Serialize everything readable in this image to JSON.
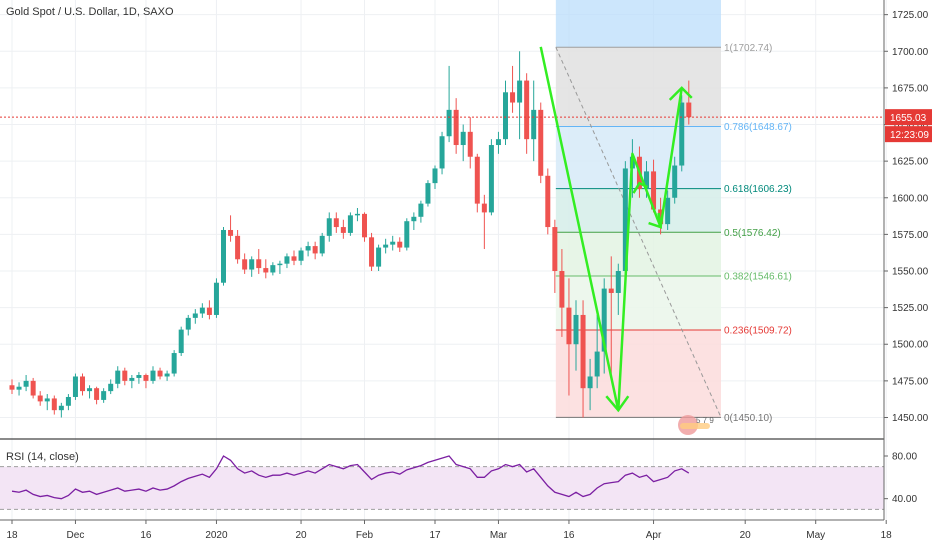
{
  "symbol_title": "Gold Spot / U.S. Dollar, 1D, SAXO",
  "rsi_title": "RSI (14, close)",
  "price_badge": "1655.03",
  "time_badge": "12:23:09",
  "watermark_digits": "5 7 9",
  "colors": {
    "up": "#26a69a",
    "down": "#ef5350",
    "price_line": "#e53935",
    "rsi": "#7b1fa2",
    "rsi_band": "#f3e5f5",
    "arrow": "#33ee22"
  },
  "chart_data": {
    "type": "candlestick",
    "y_axis_ticks": [
      "1725.00",
      "1700.00",
      "1675.00",
      "1650.00",
      "1625.00",
      "1600.00",
      "1575.00",
      "1550.00",
      "1525.00",
      "1500.00",
      "1475.00",
      "1450.00"
    ],
    "ylim": [
      1436,
      1735
    ],
    "x_axis_ticks": [
      {
        "label": "18",
        "i": 0
      },
      {
        "label": "Dec",
        "i": 9
      },
      {
        "label": "16",
        "i": 19
      },
      {
        "label": "2020",
        "i": 29
      },
      {
        "label": "20",
        "i": 41
      },
      {
        "label": "Feb",
        "i": 50
      },
      {
        "label": "17",
        "i": 60
      },
      {
        "label": "Mar",
        "i": 69
      },
      {
        "label": "16",
        "i": 79
      },
      {
        "label": "Apr",
        "i": 91
      },
      {
        "label": "20",
        "i": 104
      },
      {
        "label": "May",
        "i": 114
      },
      {
        "label": "18",
        "i": 124
      }
    ],
    "current_price": 1655.03,
    "candles": [
      [
        1472,
        1476,
        1466,
        1469
      ],
      [
        1469,
        1474,
        1465,
        1471
      ],
      [
        1471,
        1479,
        1468,
        1475
      ],
      [
        1475,
        1477,
        1463,
        1465
      ],
      [
        1465,
        1468,
        1458,
        1461
      ],
      [
        1461,
        1466,
        1455,
        1463
      ],
      [
        1463,
        1465,
        1452,
        1455
      ],
      [
        1455,
        1460,
        1450,
        1458
      ],
      [
        1458,
        1466,
        1455,
        1464
      ],
      [
        1464,
        1480,
        1462,
        1478
      ],
      [
        1478,
        1480,
        1465,
        1468
      ],
      [
        1468,
        1472,
        1463,
        1470
      ],
      [
        1470,
        1471,
        1459,
        1462
      ],
      [
        1462,
        1470,
        1460,
        1468
      ],
      [
        1468,
        1476,
        1466,
        1473
      ],
      [
        1473,
        1485,
        1470,
        1482
      ],
      [
        1482,
        1484,
        1472,
        1475
      ],
      [
        1475,
        1479,
        1470,
        1477
      ],
      [
        1477,
        1481,
        1473,
        1479
      ],
      [
        1479,
        1480,
        1470,
        1475
      ],
      [
        1475,
        1485,
        1473,
        1482
      ],
      [
        1482,
        1484,
        1476,
        1478
      ],
      [
        1478,
        1482,
        1475,
        1480
      ],
      [
        1480,
        1496,
        1478,
        1494
      ],
      [
        1494,
        1512,
        1492,
        1510
      ],
      [
        1510,
        1520,
        1506,
        1518
      ],
      [
        1518,
        1524,
        1514,
        1521
      ],
      [
        1521,
        1528,
        1518,
        1525
      ],
      [
        1525,
        1530,
        1517,
        1520
      ],
      [
        1520,
        1545,
        1518,
        1542
      ],
      [
        1542,
        1580,
        1540,
        1578
      ],
      [
        1578,
        1588,
        1570,
        1574
      ],
      [
        1574,
        1578,
        1555,
        1558
      ],
      [
        1558,
        1562,
        1548,
        1551
      ],
      [
        1551,
        1560,
        1546,
        1558
      ],
      [
        1558,
        1565,
        1548,
        1552
      ],
      [
        1552,
        1558,
        1545,
        1549
      ],
      [
        1549,
        1556,
        1547,
        1554
      ],
      [
        1554,
        1557,
        1548,
        1555
      ],
      [
        1555,
        1562,
        1552,
        1560
      ],
      [
        1560,
        1564,
        1554,
        1557
      ],
      [
        1557,
        1566,
        1554,
        1564
      ],
      [
        1564,
        1570,
        1560,
        1567
      ],
      [
        1567,
        1570,
        1558,
        1562
      ],
      [
        1562,
        1576,
        1560,
        1574
      ],
      [
        1574,
        1590,
        1570,
        1586
      ],
      [
        1586,
        1590,
        1576,
        1580
      ],
      [
        1580,
        1585,
        1572,
        1576
      ],
      [
        1576,
        1590,
        1574,
        1588
      ],
      [
        1588,
        1593,
        1584,
        1589
      ],
      [
        1589,
        1590,
        1570,
        1573
      ],
      [
        1573,
        1576,
        1550,
        1553
      ],
      [
        1553,
        1568,
        1550,
        1566
      ],
      [
        1566,
        1572,
        1562,
        1568
      ],
      [
        1568,
        1574,
        1564,
        1570
      ],
      [
        1570,
        1573,
        1563,
        1566
      ],
      [
        1566,
        1586,
        1564,
        1584
      ],
      [
        1584,
        1590,
        1578,
        1587
      ],
      [
        1587,
        1598,
        1583,
        1596
      ],
      [
        1596,
        1612,
        1594,
        1610
      ],
      [
        1610,
        1622,
        1606,
        1620
      ],
      [
        1620,
        1645,
        1616,
        1642
      ],
      [
        1642,
        1690,
        1638,
        1660
      ],
      [
        1660,
        1668,
        1630,
        1636
      ],
      [
        1636,
        1650,
        1625,
        1645
      ],
      [
        1645,
        1655,
        1620,
        1628
      ],
      [
        1628,
        1630,
        1590,
        1596
      ],
      [
        1596,
        1602,
        1565,
        1590
      ],
      [
        1590,
        1640,
        1588,
        1636
      ],
      [
        1636,
        1645,
        1630,
        1640
      ],
      [
        1640,
        1680,
        1636,
        1672
      ],
      [
        1672,
        1690,
        1658,
        1665
      ],
      [
        1665,
        1700,
        1640,
        1680
      ],
      [
        1680,
        1685,
        1630,
        1640
      ],
      [
        1640,
        1680,
        1625,
        1660
      ],
      [
        1660,
        1665,
        1610,
        1615
      ],
      [
        1615,
        1620,
        1575,
        1580
      ],
      [
        1580,
        1585,
        1535,
        1550
      ],
      [
        1550,
        1565,
        1505,
        1525
      ],
      [
        1525,
        1545,
        1465,
        1500
      ],
      [
        1500,
        1530,
        1482,
        1520
      ],
      [
        1520,
        1530,
        1450,
        1470
      ],
      [
        1470,
        1490,
        1455,
        1478
      ],
      [
        1478,
        1520,
        1470,
        1495
      ],
      [
        1495,
        1545,
        1480,
        1538
      ],
      [
        1538,
        1560,
        1480,
        1535
      ],
      [
        1535,
        1555,
        1520,
        1550
      ],
      [
        1550,
        1625,
        1545,
        1620
      ],
      [
        1620,
        1640,
        1600,
        1628
      ],
      [
        1628,
        1635,
        1600,
        1606
      ],
      [
        1606,
        1625,
        1600,
        1618
      ],
      [
        1618,
        1626,
        1590,
        1592
      ],
      [
        1592,
        1600,
        1575,
        1582
      ],
      [
        1582,
        1605,
        1578,
        1600
      ],
      [
        1600,
        1628,
        1596,
        1622
      ],
      [
        1622,
        1670,
        1618,
        1665
      ],
      [
        1665,
        1680,
        1650,
        1655
      ]
    ],
    "fib_levels": [
      {
        "label": "1(1702.74)",
        "value": 1702.74,
        "color": "#9e9e9e"
      },
      {
        "label": "0.786(1648.67)",
        "value": 1648.67,
        "color": "#64b5f6"
      },
      {
        "label": "0.618(1606.23)",
        "value": 1606.23,
        "color": "#00897b"
      },
      {
        "label": "0.5(1576.42)",
        "value": 1576.42,
        "color": "#43a047"
      },
      {
        "label": "0.382(1546.61)",
        "value": 1546.61,
        "color": "#66bb6a"
      },
      {
        "label": "0.236(1509.72)",
        "value": 1509.72,
        "color": "#e53935"
      },
      {
        "label": "0(1450.10)",
        "value": 1450.1,
        "color": "#757575"
      }
    ],
    "rsi": {
      "ticks": [
        "80.00",
        "40.00"
      ],
      "ylim": [
        20,
        95
      ],
      "band": [
        30,
        70
      ],
      "values": [
        47,
        46,
        48,
        44,
        42,
        43,
        41,
        40,
        43,
        49,
        46,
        47,
        44,
        46,
        48,
        50,
        47,
        48,
        49,
        47,
        50,
        48,
        49,
        52,
        56,
        59,
        61,
        63,
        60,
        68,
        80,
        76,
        68,
        64,
        66,
        62,
        60,
        62,
        62,
        64,
        62,
        64,
        66,
        64,
        68,
        72,
        70,
        68,
        71,
        72,
        65,
        58,
        62,
        64,
        65,
        63,
        67,
        69,
        71,
        74,
        76,
        78,
        80,
        72,
        70,
        68,
        60,
        60,
        66,
        68,
        72,
        70,
        72,
        65,
        68,
        60,
        52,
        46,
        44,
        42,
        46,
        42,
        44,
        50,
        54,
        55,
        56,
        62,
        64,
        60,
        62,
        56,
        58,
        60,
        66,
        68,
        64
      ]
    }
  }
}
